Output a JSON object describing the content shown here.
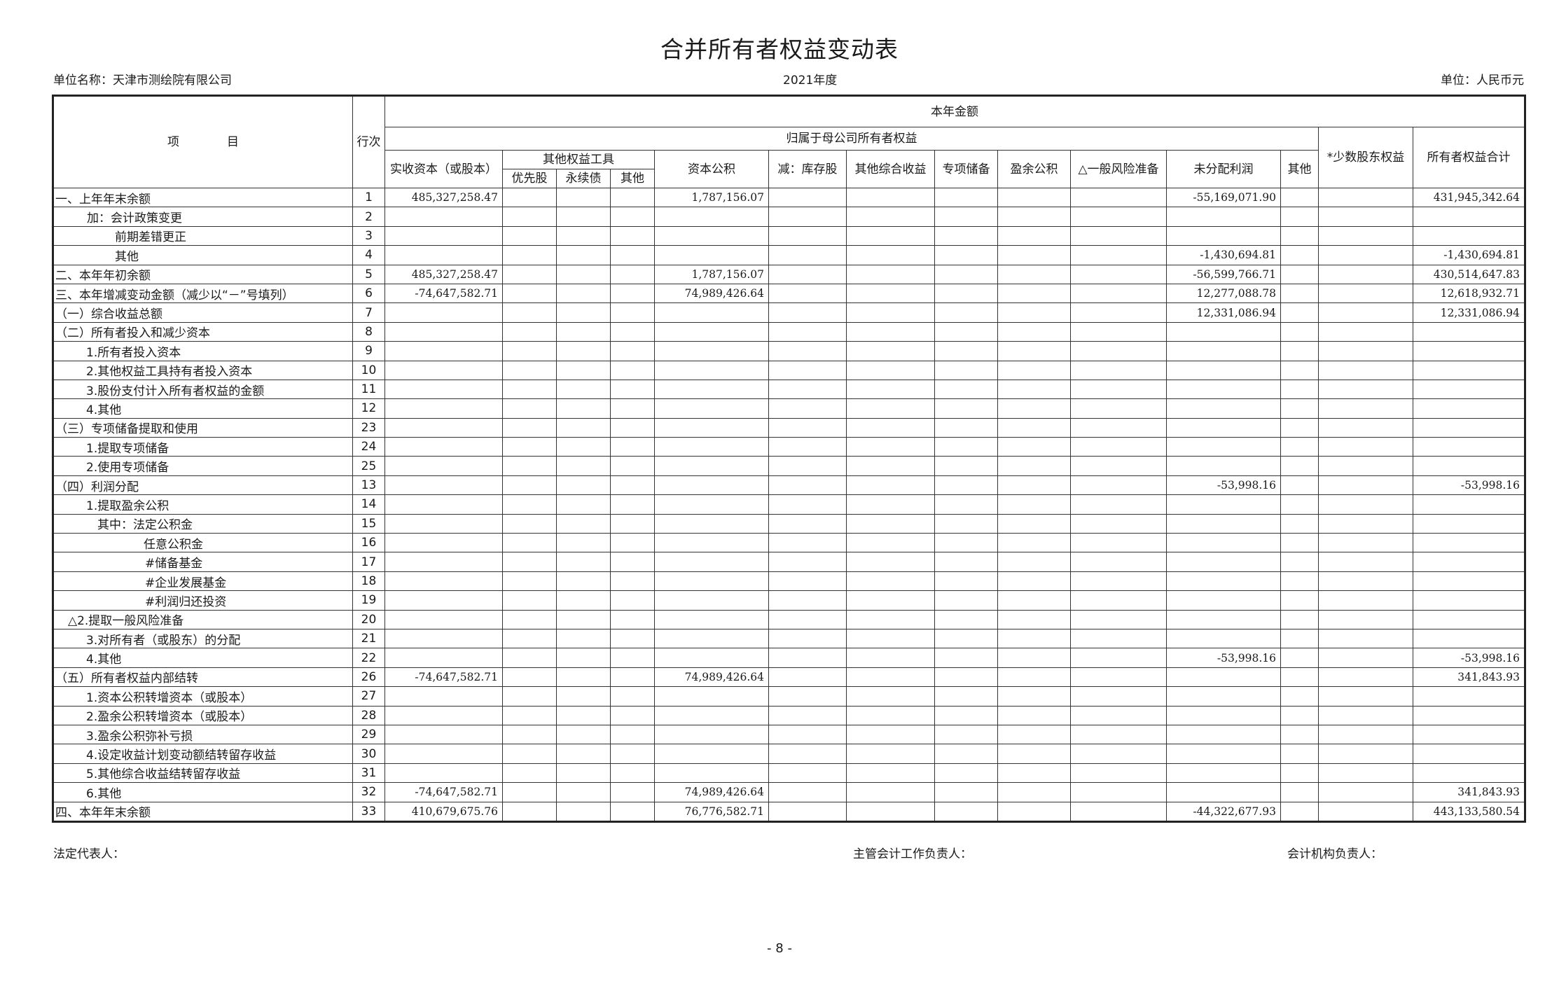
{
  "title": "合并所有者权益变动表",
  "unit_name": "单位名称：天津市测绘院有限公司",
  "period": "2021年度",
  "currency": "单位：人民币元",
  "header": {
    "item": "项　　　　目",
    "line_no": "行次",
    "current_year": "本年金额",
    "parent_equity": "归属于母公司所有者权益",
    "paid_in_capital": "实收资本（或股本）",
    "other_equity_instruments": "其他权益工具",
    "preferred": "优先股",
    "perpetual": "永续债",
    "other_instr": "其他",
    "capital_reserve": "资本公积",
    "treasury": "减：库存股",
    "oci": "其他综合收益",
    "special_reserve": "专项储备",
    "surplus_reserve": "盈余公积",
    "general_risk": "△一般风险准备",
    "retained": "未分配利润",
    "other": "其他",
    "minority": "*少数股东权益",
    "total": "所有者权益合计"
  },
  "rows": [
    {
      "label": "一、上年年末余额",
      "indent": 0,
      "line": "1",
      "values": [
        "485,327,258.47",
        "",
        "",
        "",
        "1,787,156.07",
        "",
        "",
        "",
        "",
        "",
        "-55,169,071.90",
        "",
        "",
        "431,945,342.64"
      ]
    },
    {
      "label": "加：会计政策变更",
      "indent": 45,
      "line": "2",
      "values": [
        "",
        "",
        "",
        "",
        "",
        "",
        "",
        "",
        "",
        "",
        "",
        "",
        "",
        ""
      ]
    },
    {
      "label": "前期差错更正",
      "indent": 85,
      "line": "3",
      "values": [
        "",
        "",
        "",
        "",
        "",
        "",
        "",
        "",
        "",
        "",
        "",
        "",
        "",
        ""
      ]
    },
    {
      "label": "其他",
      "indent": 85,
      "line": "4",
      "values": [
        "",
        "",
        "",
        "",
        "",
        "",
        "",
        "",
        "",
        "",
        "-1,430,694.81",
        "",
        "",
        "-1,430,694.81"
      ]
    },
    {
      "label": "二、本年年初余额",
      "indent": 0,
      "line": "5",
      "values": [
        "485,327,258.47",
        "",
        "",
        "",
        "1,787,156.07",
        "",
        "",
        "",
        "",
        "",
        "-56,599,766.71",
        "",
        "",
        "430,514,647.83"
      ]
    },
    {
      "label": "三、本年增减变动金额（减少以“－”号填列）",
      "indent": 0,
      "line": "6",
      "values": [
        "-74,647,582.71",
        "",
        "",
        "",
        "74,989,426.64",
        "",
        "",
        "",
        "",
        "",
        "12,277,088.78",
        "",
        "",
        "12,618,932.71"
      ]
    },
    {
      "label": "（一）综合收益总额",
      "indent": 0,
      "line": "7",
      "values": [
        "",
        "",
        "",
        "",
        "",
        "",
        "",
        "",
        "",
        "",
        "12,331,086.94",
        "",
        "",
        "12,331,086.94"
      ]
    },
    {
      "label": "（二）所有者投入和减少资本",
      "indent": 0,
      "line": "8",
      "values": [
        "",
        "",
        "",
        "",
        "",
        "",
        "",
        "",
        "",
        "",
        "",
        "",
        "",
        ""
      ]
    },
    {
      "label": "1.所有者投入资本",
      "indent": 44,
      "line": "9",
      "values": [
        "",
        "",
        "",
        "",
        "",
        "",
        "",
        "",
        "",
        "",
        "",
        "",
        "",
        ""
      ]
    },
    {
      "label": "2.其他权益工具持有者投入资本",
      "indent": 44,
      "line": "10",
      "values": [
        "",
        "",
        "",
        "",
        "",
        "",
        "",
        "",
        "",
        "",
        "",
        "",
        "",
        ""
      ]
    },
    {
      "label": "3.股份支付计入所有者权益的金额",
      "indent": 44,
      "line": "11",
      "values": [
        "",
        "",
        "",
        "",
        "",
        "",
        "",
        "",
        "",
        "",
        "",
        "",
        "",
        ""
      ]
    },
    {
      "label": "4.其他",
      "indent": 44,
      "line": "12",
      "values": [
        "",
        "",
        "",
        "",
        "",
        "",
        "",
        "",
        "",
        "",
        "",
        "",
        "",
        ""
      ]
    },
    {
      "label": "（三）专项储备提取和使用",
      "indent": 0,
      "line": "23",
      "values": [
        "",
        "",
        "",
        "",
        "",
        "",
        "",
        "",
        "",
        "",
        "",
        "",
        "",
        ""
      ]
    },
    {
      "label": "1.提取专项储备",
      "indent": 44,
      "line": "24",
      "values": [
        "",
        "",
        "",
        "",
        "",
        "",
        "",
        "",
        "",
        "",
        "",
        "",
        "",
        ""
      ]
    },
    {
      "label": "2.使用专项储备",
      "indent": 44,
      "line": "25",
      "values": [
        "",
        "",
        "",
        "",
        "",
        "",
        "",
        "",
        "",
        "",
        "",
        "",
        "",
        ""
      ]
    },
    {
      "label": "（四）利润分配",
      "indent": 0,
      "line": "13",
      "values": [
        "",
        "",
        "",
        "",
        "",
        "",
        "",
        "",
        "",
        "",
        "-53,998.16",
        "",
        "",
        "-53,998.16"
      ]
    },
    {
      "label": "1.提取盈余公积",
      "indent": 44,
      "line": "14",
      "values": [
        "",
        "",
        "",
        "",
        "",
        "",
        "",
        "",
        "",
        "",
        "",
        "",
        "",
        ""
      ]
    },
    {
      "label": "其中：法定公积金",
      "indent": 60,
      "line": "15",
      "values": [
        "",
        "",
        "",
        "",
        "",
        "",
        "",
        "",
        "",
        "",
        "",
        "",
        "",
        ""
      ]
    },
    {
      "label": "任意公积金",
      "indent": 126,
      "line": "16",
      "values": [
        "",
        "",
        "",
        "",
        "",
        "",
        "",
        "",
        "",
        "",
        "",
        "",
        "",
        ""
      ]
    },
    {
      "label": "#储备基金",
      "indent": 128,
      "line": "17",
      "values": [
        "",
        "",
        "",
        "",
        "",
        "",
        "",
        "",
        "",
        "",
        "",
        "",
        "",
        ""
      ]
    },
    {
      "label": "#企业发展基金",
      "indent": 128,
      "line": "18",
      "values": [
        "",
        "",
        "",
        "",
        "",
        "",
        "",
        "",
        "",
        "",
        "",
        "",
        "",
        ""
      ]
    },
    {
      "label": "#利润归还投资",
      "indent": 128,
      "line": "19",
      "values": [
        "",
        "",
        "",
        "",
        "",
        "",
        "",
        "",
        "",
        "",
        "",
        "",
        "",
        ""
      ]
    },
    {
      "label": "△2.提取一般风险准备",
      "indent": 18,
      "line": "20",
      "values": [
        "",
        "",
        "",
        "",
        "",
        "",
        "",
        "",
        "",
        "",
        "",
        "",
        "",
        ""
      ]
    },
    {
      "label": "3.对所有者（或股东）的分配",
      "indent": 44,
      "line": "21",
      "values": [
        "",
        "",
        "",
        "",
        "",
        "",
        "",
        "",
        "",
        "",
        "",
        "",
        "",
        ""
      ]
    },
    {
      "label": "4.其他",
      "indent": 44,
      "line": "22",
      "values": [
        "",
        "",
        "",
        "",
        "",
        "",
        "",
        "",
        "",
        "",
        "-53,998.16",
        "",
        "",
        "-53,998.16"
      ]
    },
    {
      "label": "（五）所有者权益内部结转",
      "indent": 0,
      "line": "26",
      "values": [
        "-74,647,582.71",
        "",
        "",
        "",
        "74,989,426.64",
        "",
        "",
        "",
        "",
        "",
        "",
        "",
        "",
        "341,843.93"
      ]
    },
    {
      "label": "1.资本公积转增资本（或股本）",
      "indent": 44,
      "line": "27",
      "values": [
        "",
        "",
        "",
        "",
        "",
        "",
        "",
        "",
        "",
        "",
        "",
        "",
        "",
        ""
      ]
    },
    {
      "label": "2.盈余公积转增资本（或股本）",
      "indent": 44,
      "line": "28",
      "values": [
        "",
        "",
        "",
        "",
        "",
        "",
        "",
        "",
        "",
        "",
        "",
        "",
        "",
        ""
      ]
    },
    {
      "label": "3.盈余公积弥补亏损",
      "indent": 44,
      "line": "29",
      "values": [
        "",
        "",
        "",
        "",
        "",
        "",
        "",
        "",
        "",
        "",
        "",
        "",
        "",
        ""
      ]
    },
    {
      "label": "4.设定收益计划变动额结转留存收益",
      "indent": 44,
      "line": "30",
      "values": [
        "",
        "",
        "",
        "",
        "",
        "",
        "",
        "",
        "",
        "",
        "",
        "",
        "",
        ""
      ]
    },
    {
      "label": "5.其他综合收益结转留存收益",
      "indent": 44,
      "line": "31",
      "values": [
        "",
        "",
        "",
        "",
        "",
        "",
        "",
        "",
        "",
        "",
        "",
        "",
        "",
        ""
      ]
    },
    {
      "label": "6.其他",
      "indent": 44,
      "line": "32",
      "values": [
        "-74,647,582.71",
        "",
        "",
        "",
        "74,989,426.64",
        "",
        "",
        "",
        "",
        "",
        "",
        "",
        "",
        "341,843.93"
      ]
    },
    {
      "label": "四、本年年末余额",
      "indent": 0,
      "line": "33",
      "values": [
        "410,679,675.76",
        "",
        "",
        "",
        "76,776,582.71",
        "",
        "",
        "",
        "",
        "",
        "-44,322,677.93",
        "",
        "",
        "443,133,580.54"
      ]
    }
  ],
  "footer": {
    "legal_rep": "法定代表人：",
    "accounting_head": "主管会计工作负责人：",
    "dept_head": "会计机构负责人："
  },
  "page_number": "- 8 -"
}
